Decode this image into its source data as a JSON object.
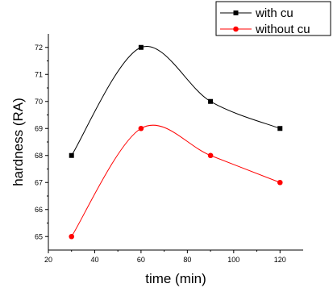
{
  "chart_data": {
    "type": "line",
    "xlabel": "time (min)",
    "ylabel": "hardness (RA)",
    "x": [
      30,
      60,
      90,
      120
    ],
    "xlim": [
      20,
      130
    ],
    "ylim": [
      64.5,
      72.5
    ],
    "xticks": [
      20,
      40,
      60,
      80,
      100,
      120
    ],
    "yticks": [
      65,
      66,
      67,
      68,
      69,
      70,
      71,
      72
    ],
    "grid": false,
    "legend_position": "top-right",
    "series": [
      {
        "name": "with cu",
        "values": [
          68,
          72,
          70,
          69
        ],
        "color": "#000000",
        "marker": "square"
      },
      {
        "name": "without cu",
        "values": [
          65,
          69,
          68,
          67
        ],
        "color": "#ff0000",
        "marker": "circle"
      }
    ]
  }
}
